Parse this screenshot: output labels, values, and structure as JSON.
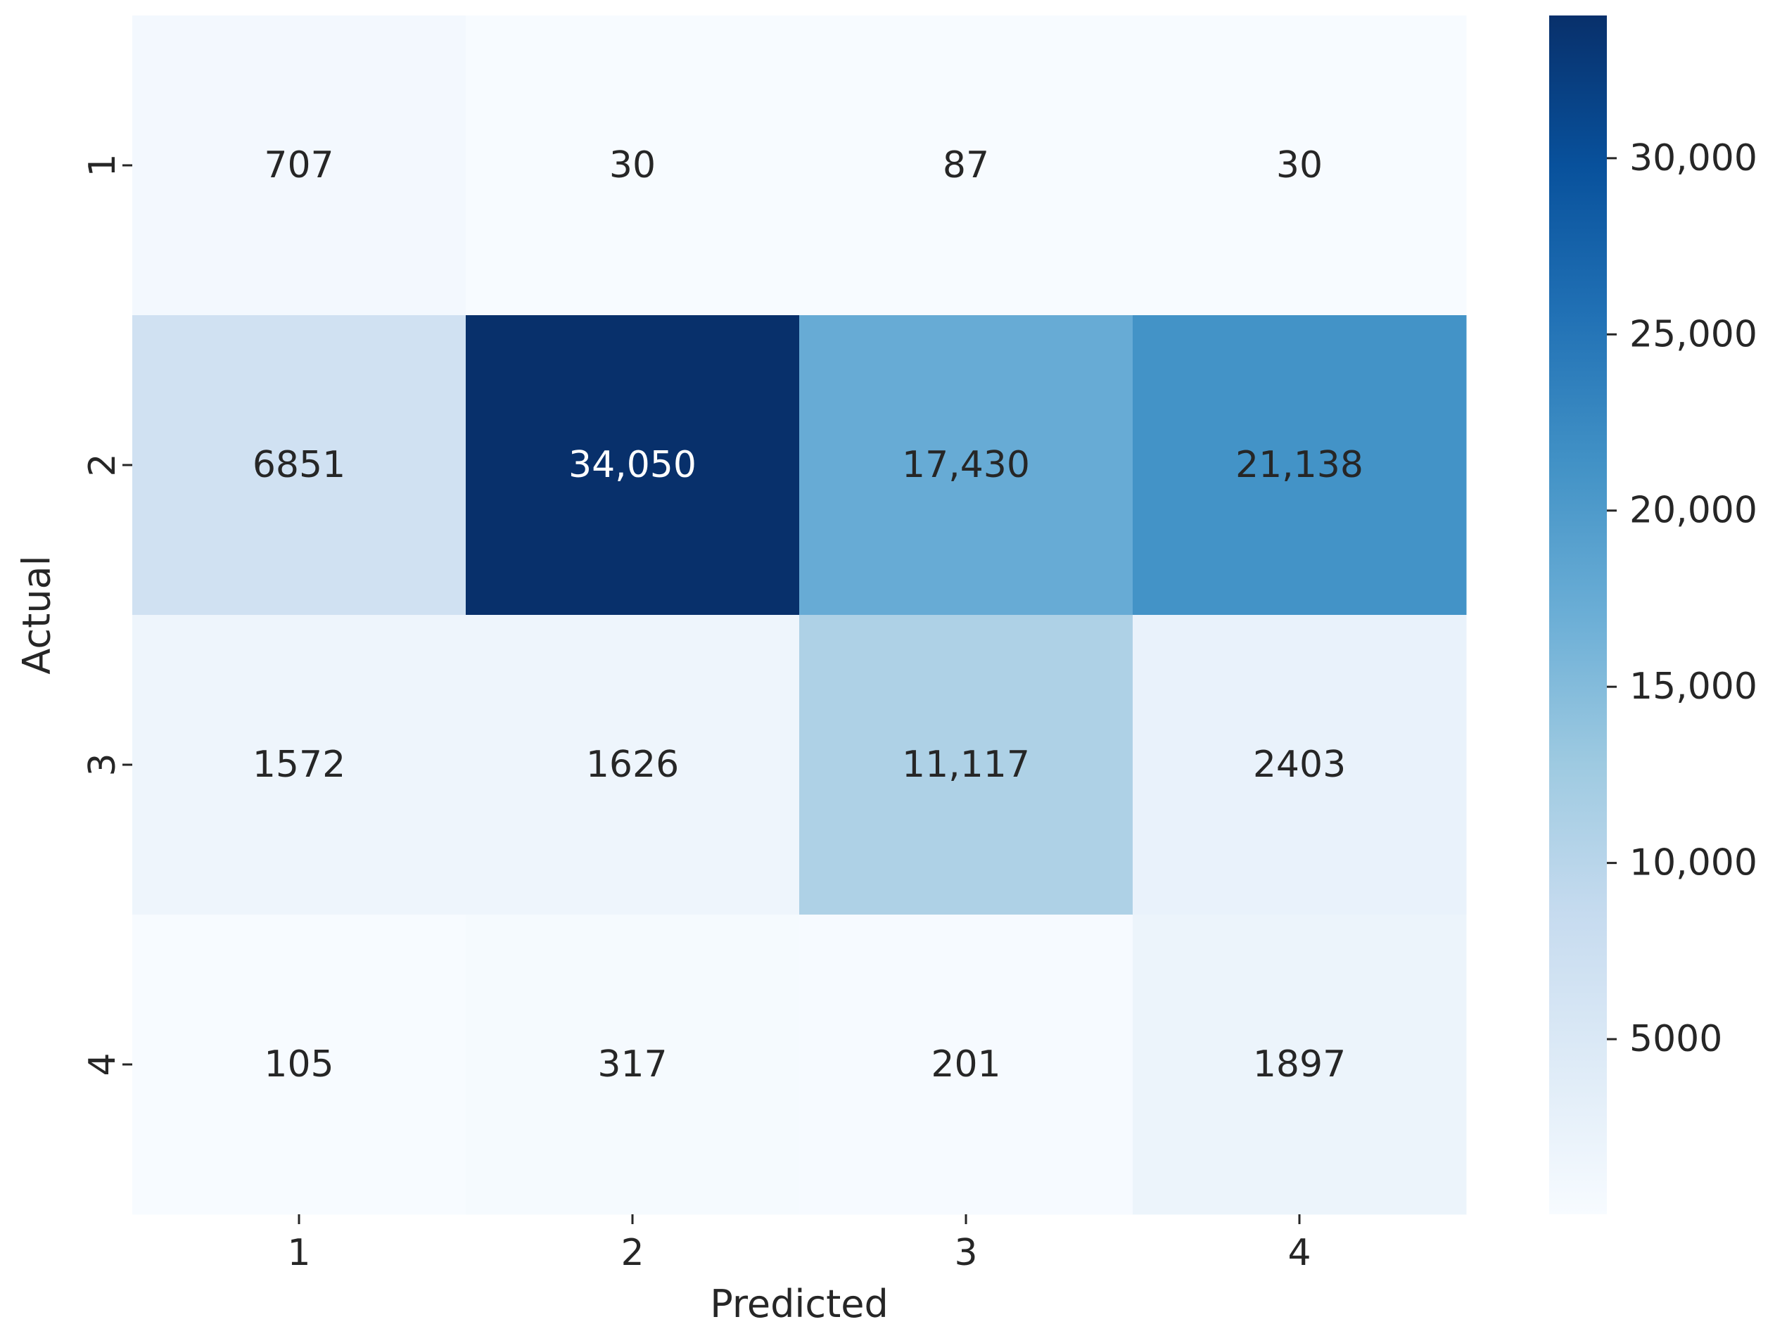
{
  "chart_data": {
    "type": "heatmap",
    "title": "",
    "xlabel": "Predicted",
    "ylabel": "Actual",
    "x_categories": [
      "1",
      "2",
      "3",
      "4"
    ],
    "y_categories": [
      "1",
      "2",
      "3",
      "4"
    ],
    "values": [
      [
        707,
        30,
        87,
        30
      ],
      [
        6851,
        34050,
        17430,
        21138
      ],
      [
        1572,
        1626,
        11117,
        2403
      ],
      [
        105,
        317,
        201,
        1897
      ]
    ],
    "cell_labels": [
      [
        "707",
        "30",
        "87",
        "30"
      ],
      [
        "6851",
        "34,050",
        "17,430",
        "21,138"
      ],
      [
        "1572",
        "1626",
        "11,117",
        "2403"
      ],
      [
        "105",
        "317",
        "201",
        "1897"
      ]
    ],
    "colormap": "Blues",
    "color_range": [
      30,
      34050
    ],
    "colorbar_ticks": [
      {
        "value": 5000,
        "label": "5000"
      },
      {
        "value": 10000,
        "label": "10,000"
      },
      {
        "value": 15000,
        "label": "15,000"
      },
      {
        "value": 20000,
        "label": "20,000"
      },
      {
        "value": 25000,
        "label": "25,000"
      },
      {
        "value": 30000,
        "label": "30,000"
      }
    ],
    "legend": "colorbar-right",
    "grid": false
  }
}
